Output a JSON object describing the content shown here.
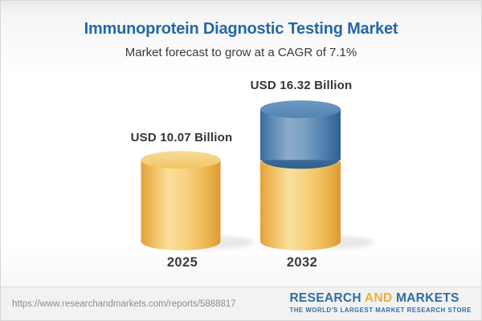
{
  "header": {
    "title": "Immunoprotein Diagnostic Testing Market",
    "subtitle": "Market forecast to grow at a CAGR of 7.1%"
  },
  "chart_data": {
    "type": "bar",
    "variant": "3d-stacked-cylinders",
    "title": "Immunoprotein Diagnostic Testing Market",
    "subtitle": "Market forecast to grow at a CAGR of 7.1%",
    "unit": "USD Billion",
    "cagr_percent": 7.1,
    "categories": [
      "2025",
      "2032"
    ],
    "values": [
      10.07,
      16.32
    ],
    "value_labels": [
      "USD 10.07 Billion",
      "USD 16.32 Billion"
    ],
    "series": [
      {
        "name": "gold-segment",
        "values": [
          10.07,
          10.07
        ],
        "color": "#F5CE7C"
      },
      {
        "name": "blue-segment",
        "values": [
          0,
          6.25
        ],
        "color": "#4C80AE"
      }
    ],
    "legend": "none",
    "gridlines": false,
    "axes_shown": false
  },
  "footer": {
    "url": "https://www.researchandmarkets.com/reports/5888817",
    "logo": {
      "line1_part1": "RESEARCH",
      "line1_part2": "AND",
      "line1_part3": "MARKETS",
      "line2": "THE WORLD'S LARGEST MARKET RESEARCH STORE",
      "blue": "#2E6DA6",
      "gold": "#F0AC38"
    }
  },
  "theme": {
    "title_color": "#2368A8",
    "subtitle_color": "#3A3A3A",
    "label_color": "#353535"
  }
}
